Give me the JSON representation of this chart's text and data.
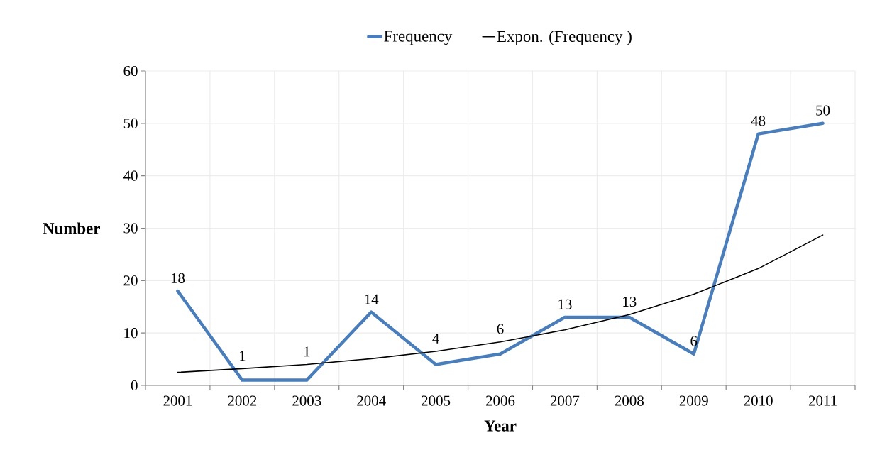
{
  "chart_data": {
    "type": "line",
    "xlabel": "Year",
    "ylabel": "Number",
    "categories": [
      "2001",
      "2002",
      "2003",
      "2004",
      "2005",
      "2006",
      "2007",
      "2008",
      "2009",
      "2010",
      "2011"
    ],
    "ylim": [
      0,
      60
    ],
    "yticks": [
      0,
      10,
      20,
      30,
      40,
      50,
      60
    ],
    "grid": true,
    "legend": "top",
    "marker": "none",
    "line_style": "solid",
    "series": [
      {
        "name": "Frequency",
        "color": "#4a7ebb",
        "values": [
          18,
          1,
          1,
          14,
          4,
          6,
          13,
          13,
          6,
          48,
          50
        ],
        "value_labels": [
          "18",
          "1",
          "1",
          "14",
          "4",
          "6",
          "13",
          "13",
          "6",
          "48",
          "50"
        ]
      },
      {
        "name": "Expon. (Frequency )",
        "color": "#000000",
        "values": [
          2.5,
          3.2,
          4.0,
          5.1,
          6.5,
          8.3,
          10.6,
          13.5,
          17.4,
          22.3,
          28.7
        ]
      }
    ]
  }
}
